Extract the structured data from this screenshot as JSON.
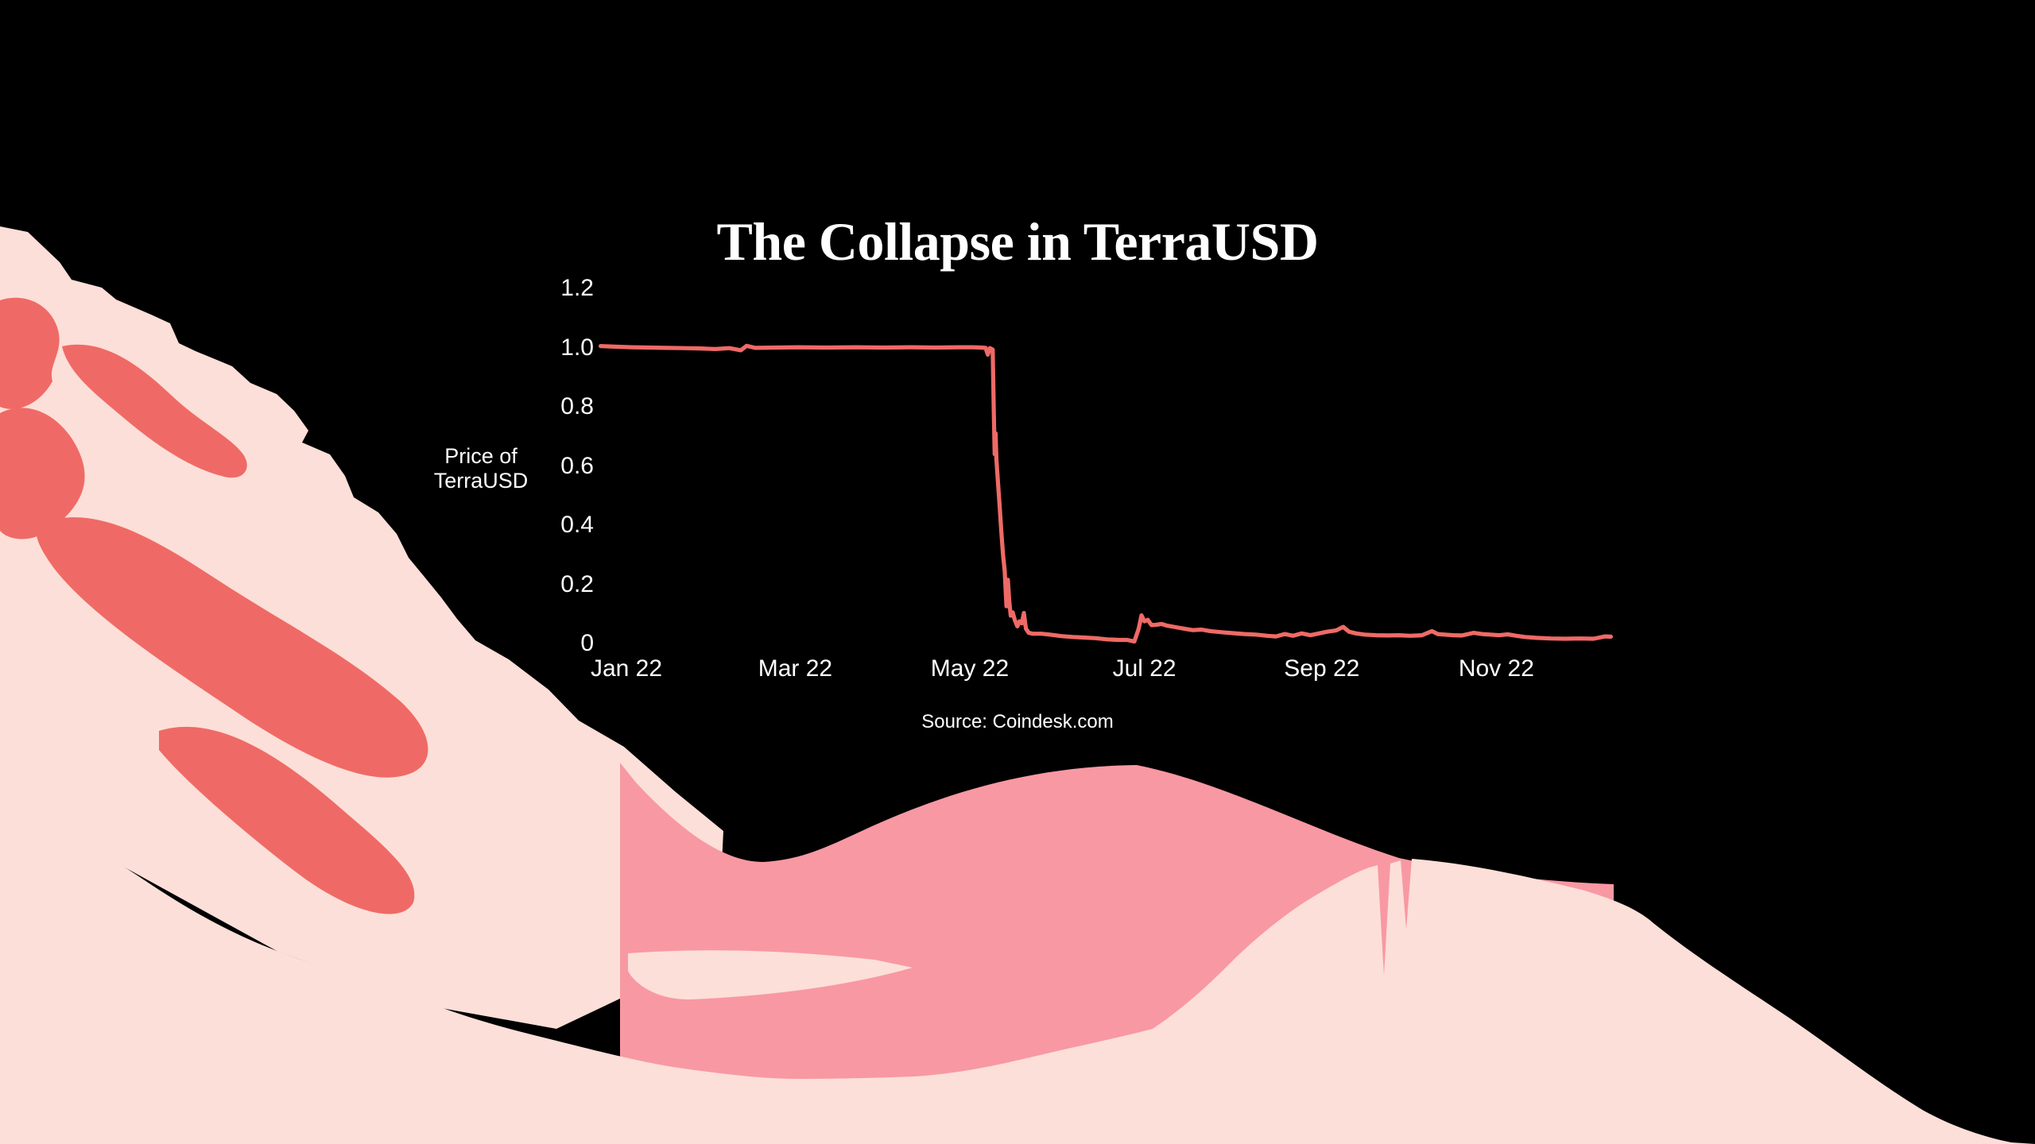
{
  "palette": {
    "background": "#000000",
    "line": "#EF6A66",
    "pink_medium": "#F898A3",
    "pink_light": "#FCDFD8",
    "text": "#FFFFFF"
  },
  "header": {
    "title": "The Collapse in TerraUSD"
  },
  "axis_label": {
    "line1": "Price of",
    "line2": "TerraUSD"
  },
  "footer": {
    "source": "Source: Coindesk.com"
  },
  "chart_data": {
    "type": "line",
    "title": "The Collapse in TerraUSD",
    "xlabel": "",
    "ylabel": "Price of TerraUSD",
    "source": "Source: Coindesk.com",
    "x_unit": "days since 2022-01-01",
    "xlim": [
      -9,
      345
    ],
    "ylim": [
      0,
      1.2
    ],
    "grid": false,
    "legend": null,
    "y_ticks": [
      0,
      0.2,
      0.4,
      0.6,
      0.8,
      1.0,
      1.2
    ],
    "y_tick_labels": [
      "0",
      "0.2",
      "0.4",
      "0.6",
      "0.8",
      "1.0",
      "1.2"
    ],
    "x_ticks": [
      0,
      59,
      120,
      181,
      243,
      304
    ],
    "x_tick_labels": [
      "Jan 22",
      "Mar 22",
      "May 22",
      "Jul 22",
      "Sep 22",
      "Nov 22"
    ],
    "series": [
      {
        "name": "TerraUSD price (USD)",
        "points": [
          [
            -9,
            1.005
          ],
          [
            -4,
            1.003
          ],
          [
            2,
            1.001
          ],
          [
            8,
            1.0
          ],
          [
            14,
            0.999
          ],
          [
            20,
            0.998
          ],
          [
            26,
            0.997
          ],
          [
            31,
            0.995
          ],
          [
            36,
            0.998
          ],
          [
            40,
            0.991
          ],
          [
            42,
            1.006
          ],
          [
            45,
            0.999
          ],
          [
            52,
            1.0
          ],
          [
            60,
            1.001
          ],
          [
            70,
            1.0
          ],
          [
            80,
            1.001
          ],
          [
            90,
            1.0
          ],
          [
            100,
            1.001
          ],
          [
            108,
            1.0
          ],
          [
            116,
            1.001
          ],
          [
            121,
            1.001
          ],
          [
            124,
            1.0
          ],
          [
            125.5,
            0.999
          ],
          [
            126.3,
            0.976
          ],
          [
            127.0,
            0.998
          ],
          [
            128.0,
            0.993
          ],
          [
            128.4,
            0.78
          ],
          [
            128.7,
            0.64
          ],
          [
            129.0,
            0.71
          ],
          [
            129.3,
            0.62
          ],
          [
            129.8,
            0.55
          ],
          [
            130.4,
            0.47
          ],
          [
            131.0,
            0.38
          ],
          [
            131.6,
            0.3
          ],
          [
            132.2,
            0.245
          ],
          [
            132.8,
            0.126
          ],
          [
            133.3,
            0.215
          ],
          [
            133.8,
            0.14
          ],
          [
            134.3,
            0.094
          ],
          [
            135.0,
            0.105
          ],
          [
            135.7,
            0.08
          ],
          [
            136.6,
            0.058
          ],
          [
            137.4,
            0.075
          ],
          [
            138.2,
            0.068
          ],
          [
            138.9,
            0.103
          ],
          [
            139.6,
            0.05
          ],
          [
            140.6,
            0.036
          ],
          [
            142,
            0.033
          ],
          [
            145,
            0.033
          ],
          [
            148,
            0.03
          ],
          [
            152,
            0.025
          ],
          [
            156,
            0.022
          ],
          [
            160,
            0.02
          ],
          [
            164,
            0.018
          ],
          [
            168,
            0.014
          ],
          [
            172,
            0.012
          ],
          [
            175,
            0.012
          ],
          [
            177.5,
            0.007
          ],
          [
            179.0,
            0.05
          ],
          [
            180.0,
            0.095
          ],
          [
            181.0,
            0.075
          ],
          [
            182.2,
            0.08
          ],
          [
            183.5,
            0.062
          ],
          [
            185,
            0.063
          ],
          [
            187,
            0.066
          ],
          [
            189,
            0.06
          ],
          [
            192,
            0.055
          ],
          [
            195,
            0.05
          ],
          [
            198,
            0.045
          ],
          [
            201,
            0.047
          ],
          [
            204,
            0.042
          ],
          [
            208,
            0.038
          ],
          [
            212,
            0.035
          ],
          [
            216,
            0.032
          ],
          [
            220,
            0.03
          ],
          [
            224,
            0.026
          ],
          [
            227,
            0.024
          ],
          [
            230,
            0.032
          ],
          [
            233,
            0.026
          ],
          [
            236,
            0.034
          ],
          [
            239,
            0.028
          ],
          [
            242,
            0.034
          ],
          [
            245,
            0.04
          ],
          [
            248,
            0.044
          ],
          [
            250.5,
            0.056
          ],
          [
            252.5,
            0.04
          ],
          [
            255,
            0.034
          ],
          [
            258,
            0.03
          ],
          [
            262,
            0.028
          ],
          [
            266,
            0.027
          ],
          [
            270,
            0.028
          ],
          [
            274,
            0.026
          ],
          [
            278,
            0.028
          ],
          [
            281.5,
            0.042
          ],
          [
            283.5,
            0.032
          ],
          [
            286,
            0.03
          ],
          [
            289,
            0.028
          ],
          [
            292,
            0.027
          ],
          [
            296,
            0.036
          ],
          [
            299,
            0.032
          ],
          [
            302,
            0.03
          ],
          [
            305,
            0.028
          ],
          [
            308,
            0.031
          ],
          [
            311,
            0.026
          ],
          [
            314,
            0.022
          ],
          [
            318,
            0.019
          ],
          [
            323,
            0.017
          ],
          [
            328,
            0.016
          ],
          [
            333,
            0.017
          ],
          [
            338,
            0.016
          ],
          [
            342,
            0.024
          ],
          [
            344,
            0.023
          ]
        ]
      }
    ]
  }
}
